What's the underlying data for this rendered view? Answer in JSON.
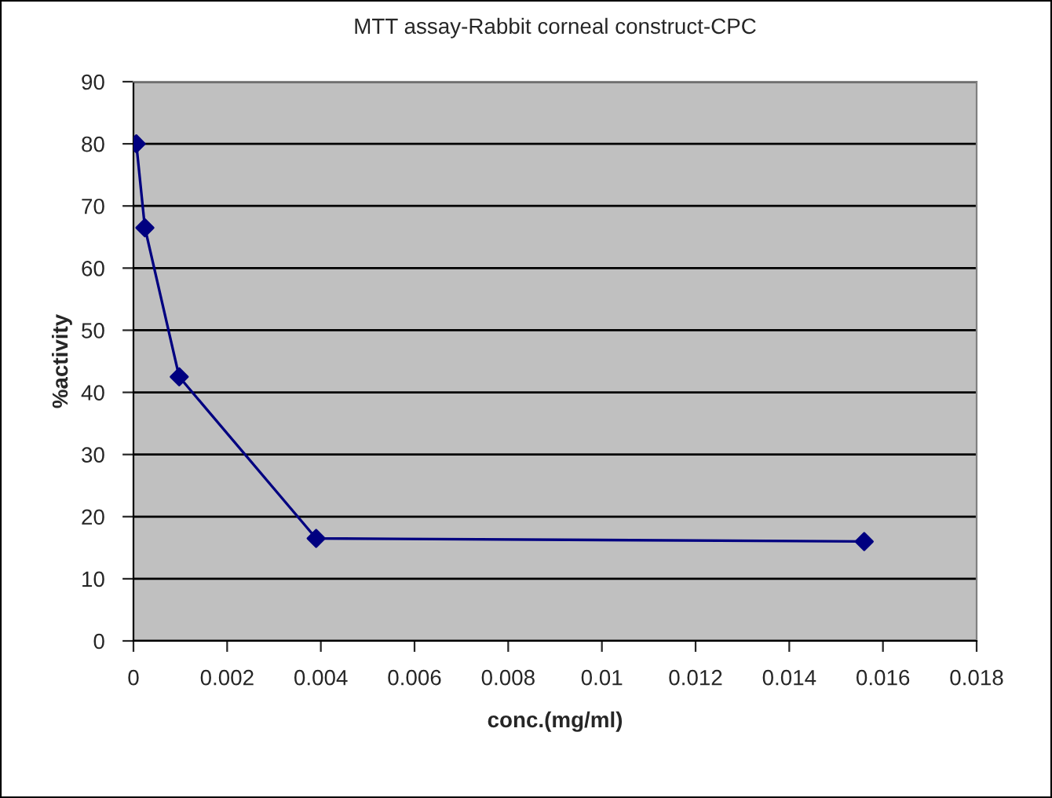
{
  "chart_data": {
    "type": "line",
    "title": "MTT assay-Rabbit corneal construct-CPC",
    "xlabel": "conc.(mg/ml)",
    "ylabel": "%activity",
    "x": [
      6.1e-05,
      0.000244,
      0.000977,
      0.0039,
      0.0156
    ],
    "series": [
      {
        "color": "#000080",
        "values": [
          80,
          66.5,
          42.5,
          16.5,
          16
        ]
      }
    ],
    "xlim": [
      0,
      0.018
    ],
    "xticks": [
      0,
      0.002,
      0.004,
      0.006,
      0.008,
      0.01,
      0.012,
      0.014,
      0.016,
      0.018
    ],
    "ylim": [
      0,
      90
    ],
    "yticks": [
      0,
      10,
      20,
      30,
      40,
      50,
      60,
      70,
      80,
      90
    ],
    "grid": "y",
    "marker": "diamond",
    "line_style": "solid"
  }
}
